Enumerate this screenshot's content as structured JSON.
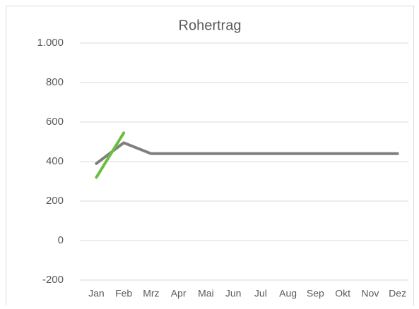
{
  "chart_data": {
    "type": "line",
    "title": "Rohertrag",
    "categories": [
      "Jan",
      "Feb",
      "Mrz",
      "Apr",
      "Mai",
      "Jun",
      "Jul",
      "Aug",
      "Sep",
      "Okt",
      "Nov",
      "Dez"
    ],
    "series": [
      {
        "color": "#7f7f7f",
        "values": [
          390,
          495,
          440,
          440,
          440,
          440,
          440,
          440,
          440,
          440,
          440,
          440
        ]
      },
      {
        "color": "#6cbf3c",
        "values": [
          320,
          545,
          null,
          null,
          null,
          null,
          null,
          null,
          null,
          null,
          null,
          null
        ]
      }
    ],
    "ylim": [
      -200,
      1000
    ],
    "yticks": [
      -200,
      0,
      200,
      400,
      600,
      800,
      {
        "value": 1000,
        "label": "1.000"
      }
    ],
    "grid": true
  }
}
